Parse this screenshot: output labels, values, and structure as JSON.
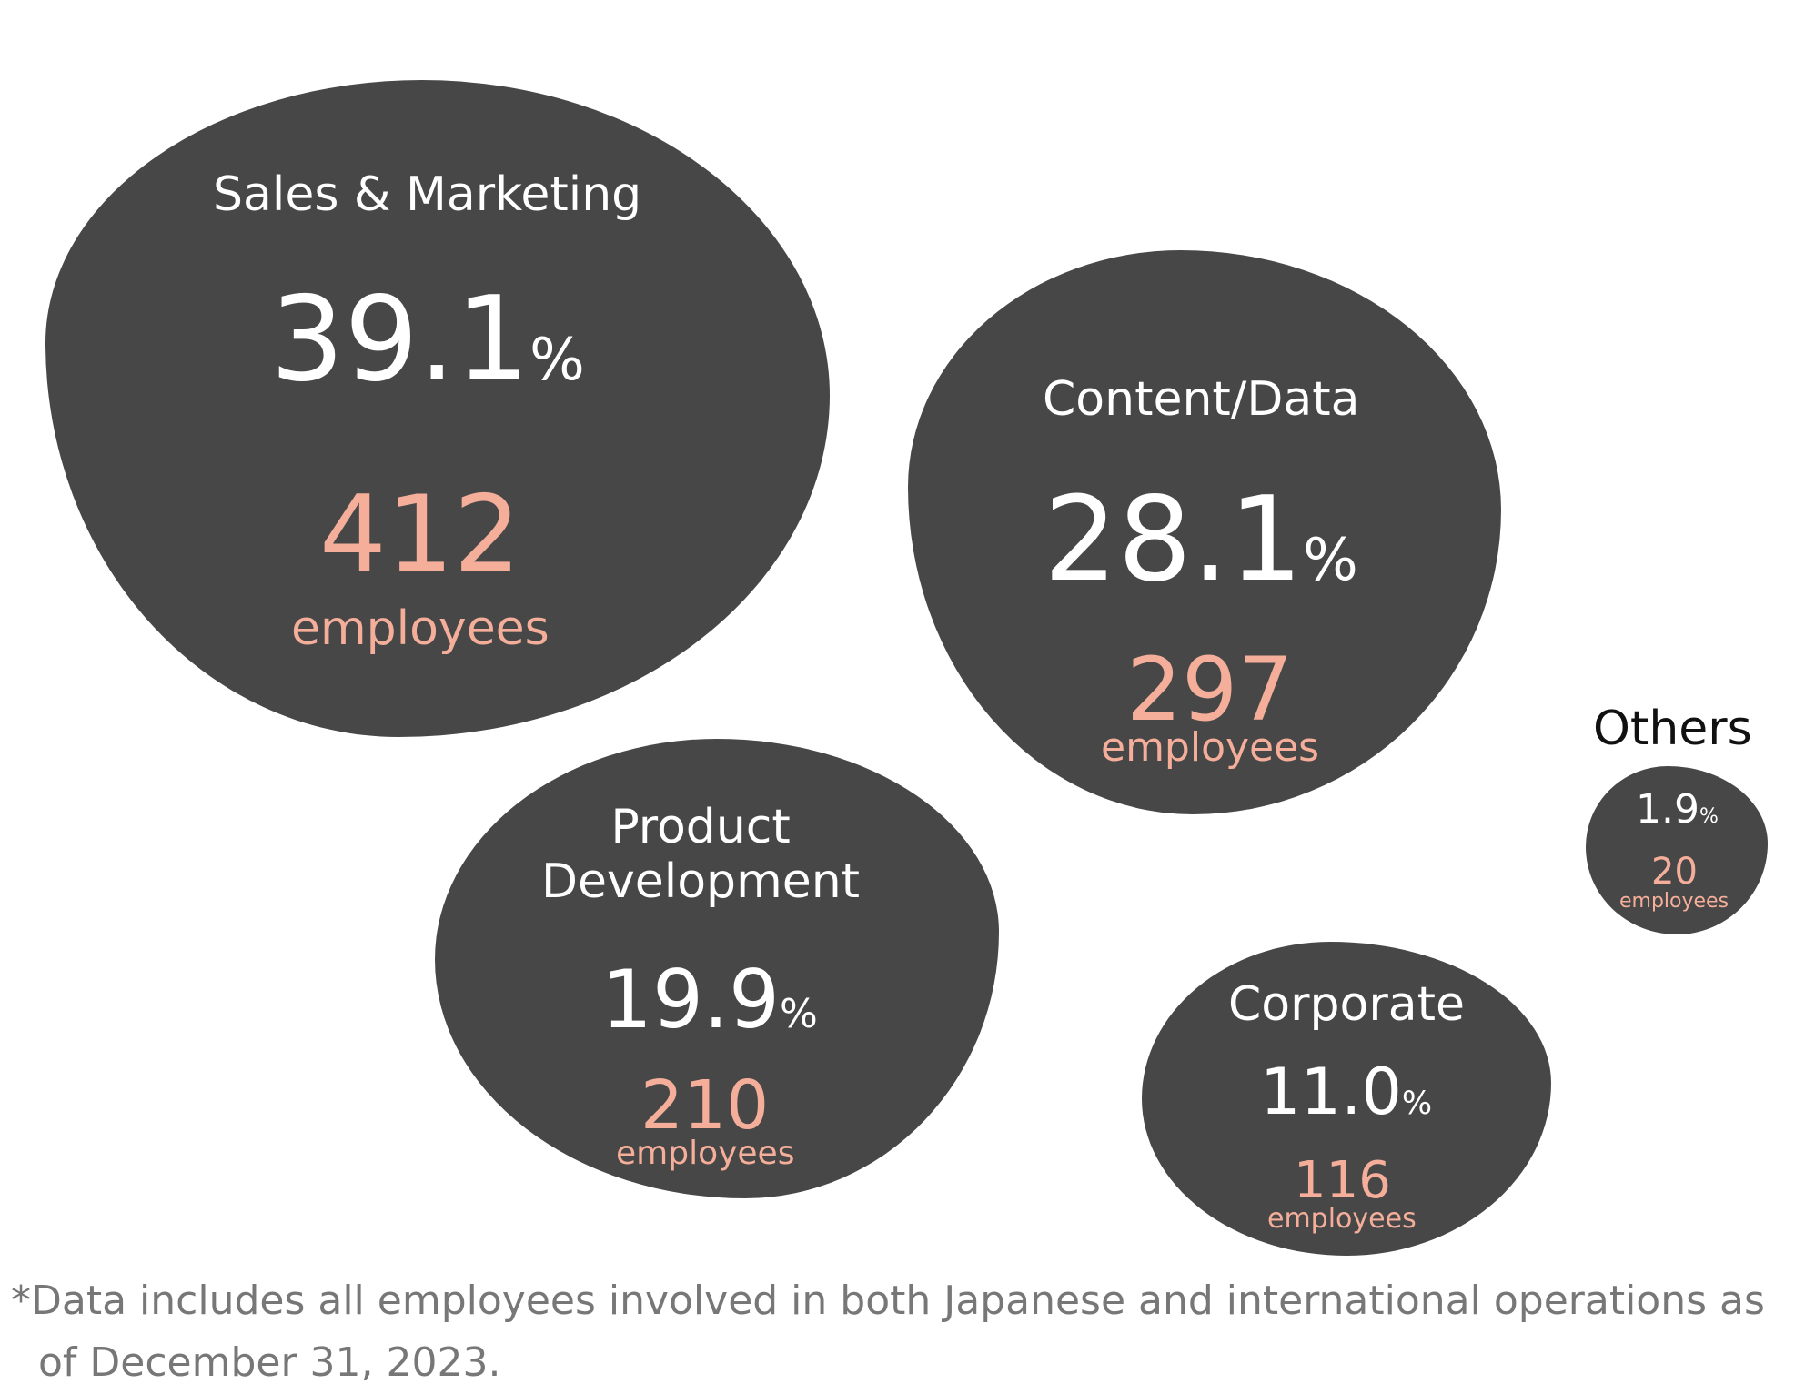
{
  "chart_data": {
    "type": "bubble",
    "unit_label": "employees",
    "percent_symbol": "%",
    "series": [
      {
        "name": "Sales & Marketing",
        "percent": 39.1,
        "percent_text": "39.1",
        "employees": 412
      },
      {
        "name": "Content/Data",
        "percent": 28.1,
        "percent_text": "28.1",
        "employees": 297
      },
      {
        "name": "Product\nDevelopment",
        "percent": 19.9,
        "percent_text": "19.9",
        "employees": 210
      },
      {
        "name": "Corporate",
        "percent": 11.0,
        "percent_text": "11.0",
        "employees": 116
      },
      {
        "name": "Others",
        "percent": 1.9,
        "percent_text": "1.9",
        "employees": 20,
        "label_outside": true
      }
    ],
    "colors": {
      "bubble": "#474747",
      "name": "#ffffff",
      "percent": "#ffffff",
      "employees": "#f4ae9a",
      "outside_label": "#111111"
    }
  },
  "footnote": {
    "line1": "*Data includes all employees involved in both Japanese and international operations as",
    "line2": "of December 31, 2023."
  }
}
